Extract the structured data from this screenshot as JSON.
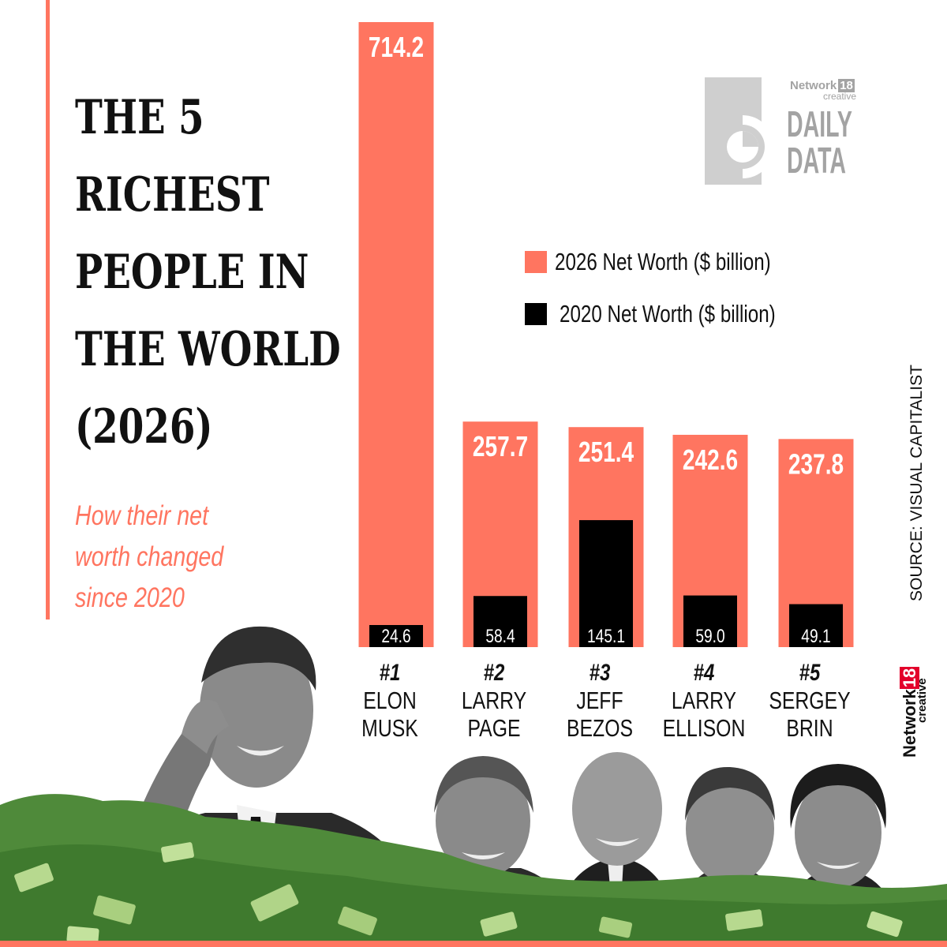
{
  "title_lines": [
    "THE 5",
    "RICHEST",
    "PEOPLE IN",
    "THE WORLD",
    "(2026)"
  ],
  "subtitle_lines": [
    "How their net",
    "worth changed",
    "since 2020"
  ],
  "logo": {
    "network": "Network",
    "eighteen": "18",
    "creative": "creative",
    "daily": "DAILY",
    "data": "DATA"
  },
  "source": "SOURCE: VISUAL CAPITALIST",
  "brand": {
    "network": "Network",
    "eighteen": "18",
    "creative": "creative"
  },
  "colors": {
    "accent": "#ff7560",
    "series_2020": "#000000",
    "money_green": "#4f8a3a"
  },
  "chart_data": {
    "type": "bar",
    "title": "THE 5 RICHEST PEOPLE IN THE WORLD (2026)",
    "subtitle": "How their net worth changed since 2020",
    "ranks": [
      "#1",
      "#2",
      "#3",
      "#4",
      "#5"
    ],
    "categories": [
      [
        "ELON",
        "MUSK"
      ],
      [
        "LARRY",
        "PAGE"
      ],
      [
        "JEFF",
        "BEZOS"
      ],
      [
        "LARRY",
        "ELLISON"
      ],
      [
        "SERGEY",
        "BRIN"
      ]
    ],
    "series": [
      {
        "name": "2026 Net Worth ($ billion)",
        "color": "#ff7560",
        "values": [
          714.2,
          257.7,
          251.4,
          242.6,
          237.8
        ],
        "labels": [
          "714.2",
          "257.7",
          "251.4",
          "242.6",
          "237.8"
        ]
      },
      {
        "name": "2020 Net Worth ($ billion)",
        "color": "#000000",
        "values": [
          24.6,
          58.4,
          145.1,
          59.0,
          49.1
        ],
        "labels": [
          "24.6",
          "58.4",
          "145.1",
          "59.0",
          "49.1"
        ]
      }
    ],
    "legend_position": "upper-right",
    "grid": false
  }
}
